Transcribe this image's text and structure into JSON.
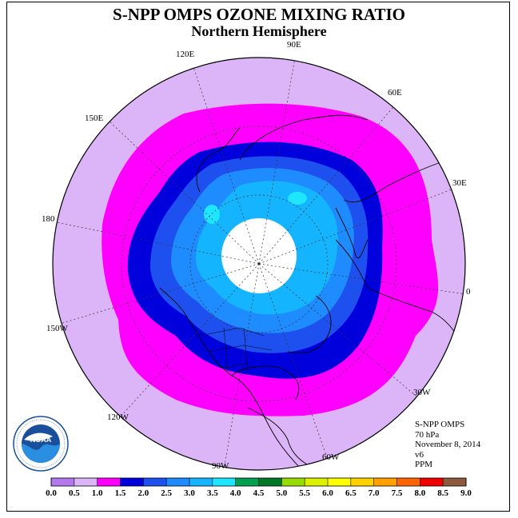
{
  "title": "S-NPP OMPS OZONE MIXING RATIO",
  "subtitle": "Northern Hemisphere",
  "longitude_labels": {
    "lon_90e": "90E",
    "lon_60e": "60E",
    "lon_30e": "30E",
    "lon_0": "0",
    "lon_30w": "30W",
    "lon_60w": "60W",
    "lon_90w": "90W",
    "lon_120w": "120W",
    "lon_150w": "150W",
    "lon_180": "180",
    "lon_150e": "150E",
    "lon_120e": "120E"
  },
  "info": {
    "instrument": "S-NPP OMPS",
    "level": "70 hPa",
    "date": "November 8, 2014",
    "version": "v6",
    "units": "PPM"
  },
  "logo": {
    "text": "NOAA",
    "icon": "noaa-logo"
  },
  "colorbar": {
    "ticks": [
      "0.0",
      "0.5",
      "1.0",
      "1.5",
      "2.0",
      "2.5",
      "3.0",
      "3.5",
      "4.0",
      "4.5",
      "5.0",
      "5.5",
      "6.0",
      "6.5",
      "7.0",
      "7.5",
      "8.0",
      "8.5",
      "9.0"
    ],
    "colors": [
      "#b478ee",
      "#dcb4f8",
      "#ff00ff",
      "#0000dc",
      "#1e50f0",
      "#1e8cff",
      "#14b4ff",
      "#1ee6ff",
      "#00a050",
      "#007828",
      "#96dc00",
      "#dcf000",
      "#ffff00",
      "#ffd200",
      "#ffa000",
      "#ff6400",
      "#f00000",
      "#8c5a3c"
    ]
  },
  "map_colors": {
    "ocean_outer": "#dcb4f8",
    "ring_1_0": "#ff00ff",
    "ring_1_5": "#0000dc",
    "ring_2_0": "#1e50f0",
    "ring_2_5": "#1e8cff",
    "ring_3_0": "#14b4ff",
    "ring_3_5": "#1ee6ff",
    "polar_night": "#ffffff"
  }
}
